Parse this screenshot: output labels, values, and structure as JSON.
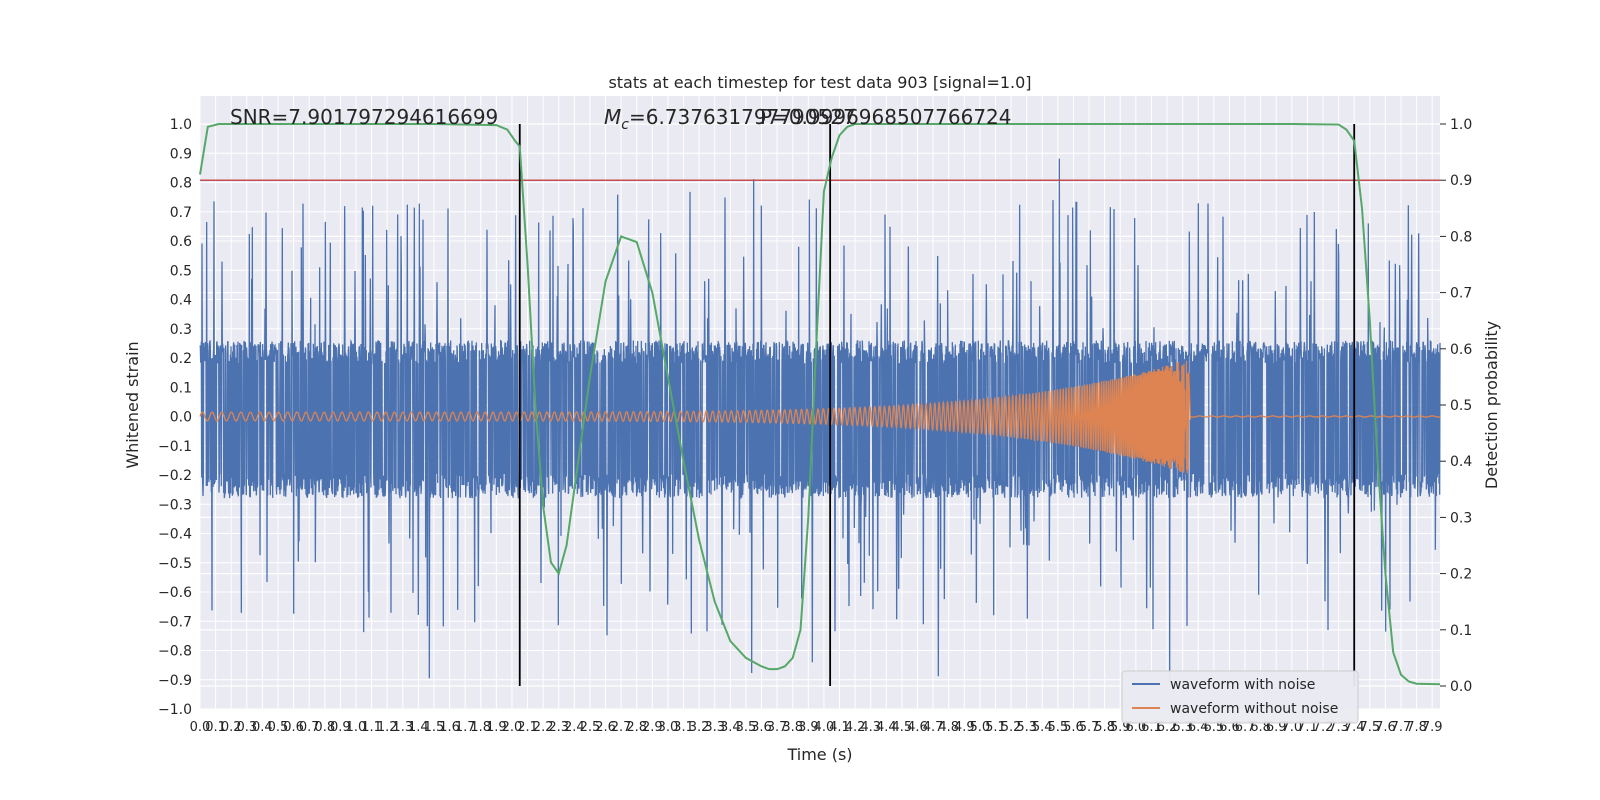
{
  "chart_data": {
    "type": "line",
    "title": "stats at each timestep for test data 903 [signal=1.0]",
    "xlabel": "Time (s)",
    "ylabel": "Whitened strain",
    "y2label": "Detection probability",
    "xlim": [
      0.0,
      7.95
    ],
    "ylim": [
      -1.0,
      1.0
    ],
    "y2lim": [
      0.0,
      1.0
    ],
    "xticks": [
      "0.0",
      "0.1",
      "0.2",
      "0.3",
      "0.4",
      "0.5",
      "0.6",
      "0.7",
      "0.8",
      "0.9",
      "1.0",
      "1.1",
      "1.2",
      "1.3",
      "1.4",
      "1.5",
      "1.6",
      "1.7",
      "1.8",
      "1.9",
      "2.0",
      "2.1",
      "2.2",
      "2.3",
      "2.4",
      "2.5",
      "2.6",
      "2.7",
      "2.8",
      "2.9",
      "3.0",
      "3.1",
      "3.2",
      "3.3",
      "3.4",
      "3.5",
      "3.6",
      "3.7",
      "3.8",
      "3.9",
      "4.0",
      "4.1",
      "4.2",
      "4.3",
      "4.4",
      "4.5",
      "4.6",
      "4.7",
      "4.8",
      "4.9",
      "5.0",
      "5.1",
      "5.2",
      "5.3",
      "5.4",
      "5.5",
      "5.6",
      "5.7",
      "5.8",
      "5.9",
      "6.0",
      "6.1",
      "6.2",
      "6.3",
      "6.4",
      "6.5",
      "6.6",
      "6.7",
      "6.8",
      "6.9",
      "7.0",
      "7.1",
      "7.2",
      "7.3",
      "7.4",
      "7.5",
      "7.6",
      "7.7",
      "7.8",
      "7.9"
    ],
    "yticks": [
      "−1.0",
      "−0.9",
      "−0.8",
      "−0.7",
      "−0.6",
      "−0.5",
      "−0.4",
      "−0.3",
      "−0.2",
      "−0.1",
      "0.0",
      "0.1",
      "0.2",
      "0.3",
      "0.4",
      "0.5",
      "0.6",
      "0.7",
      "0.8",
      "0.9",
      "1.0"
    ],
    "y2ticks": [
      "0.0",
      "0.1",
      "0.2",
      "0.3",
      "0.4",
      "0.5",
      "0.6",
      "0.7",
      "0.8",
      "0.9",
      "1.0"
    ],
    "annotations": [
      {
        "id": "snr",
        "text": "SNR=7.901797294616699",
        "x": 0.2,
        "y": 1.02
      },
      {
        "id": "mc",
        "prefix": "M",
        "sub": "c",
        "text": "=6.737631797790527",
        "x": 2.6,
        "y": 1.02
      },
      {
        "id": "p",
        "text": "P=0.9996968507766724",
        "x": 3.6,
        "y": 1.02
      }
    ],
    "threshold": {
      "y2": 0.9,
      "color": "#c44e52"
    },
    "vlines": [
      2.05,
      4.04,
      7.4
    ],
    "series": [
      {
        "name": "waveform with noise",
        "color": "#4c72b0",
        "axis": "left",
        "kind": "noise",
        "noise_band": [
          -0.28,
          0.26
        ],
        "x_range": [
          0.0,
          7.95
        ]
      },
      {
        "name": "waveform without noise",
        "color": "#dd8452",
        "axis": "left",
        "kind": "chirp",
        "x_range": [
          0.0,
          7.95
        ],
        "merger_x": 6.35,
        "amplitude_start": 0.015,
        "amplitude_peak": 0.2
      },
      {
        "name": "detection probability",
        "color": "#55a868",
        "axis": "right",
        "x": [
          0.0,
          0.05,
          0.12,
          0.2,
          0.5,
          1.0,
          1.5,
          1.9,
          1.97,
          2.02,
          2.05,
          2.1,
          2.15,
          2.2,
          2.25,
          2.3,
          2.35,
          2.4,
          2.5,
          2.6,
          2.7,
          2.8,
          2.9,
          3.0,
          3.1,
          3.2,
          3.3,
          3.4,
          3.5,
          3.6,
          3.65,
          3.7,
          3.75,
          3.8,
          3.85,
          3.9,
          3.95,
          4.0,
          4.05,
          4.1,
          4.15,
          4.2,
          4.3,
          4.5,
          5.0,
          6.0,
          7.0,
          7.3,
          7.35,
          7.4,
          7.45,
          7.5,
          7.55,
          7.6,
          7.65,
          7.7,
          7.75,
          7.8,
          7.95
        ],
        "y": [
          0.91,
          0.995,
          1.0,
          1.0,
          1.0,
          1.0,
          1.0,
          0.998,
          0.99,
          0.97,
          0.96,
          0.75,
          0.5,
          0.32,
          0.22,
          0.2,
          0.25,
          0.35,
          0.55,
          0.72,
          0.8,
          0.79,
          0.7,
          0.55,
          0.4,
          0.26,
          0.15,
          0.08,
          0.05,
          0.035,
          0.03,
          0.03,
          0.035,
          0.05,
          0.1,
          0.3,
          0.6,
          0.88,
          0.94,
          0.98,
          0.995,
          1.0,
          1.0,
          1.0,
          1.0,
          1.0,
          1.0,
          0.999,
          0.99,
          0.97,
          0.85,
          0.65,
          0.4,
          0.2,
          0.06,
          0.02,
          0.008,
          0.004,
          0.003
        ]
      }
    ],
    "grid": true,
    "legend": "lower-right"
  }
}
